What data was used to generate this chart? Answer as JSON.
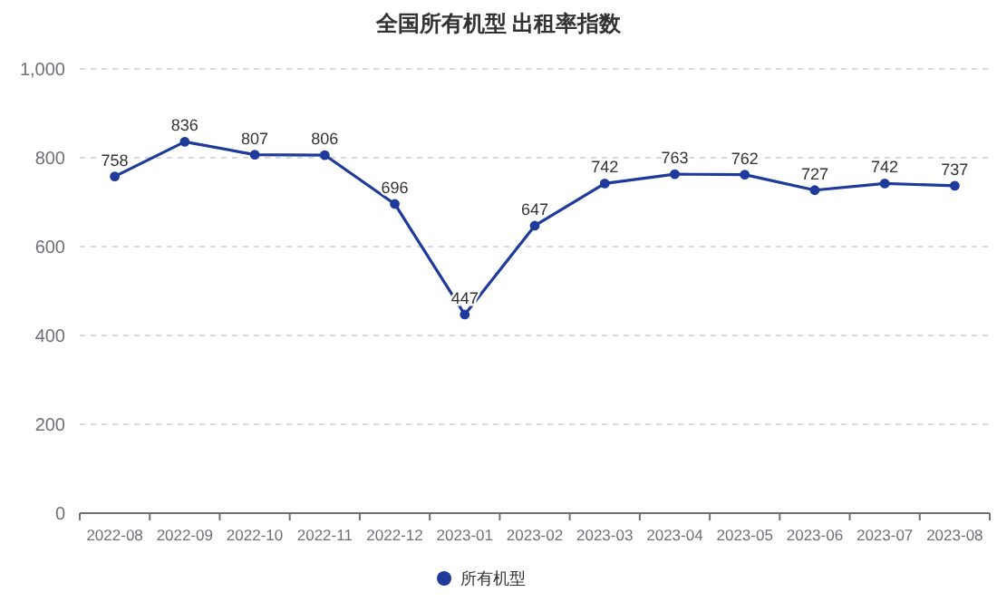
{
  "chart_data": {
    "type": "line",
    "title": "全国所有机型 出租率指数",
    "categories": [
      "2022-08",
      "2022-09",
      "2022-10",
      "2022-11",
      "2022-12",
      "2023-01",
      "2023-02",
      "2023-03",
      "2023-04",
      "2023-05",
      "2023-06",
      "2023-07",
      "2023-08"
    ],
    "series": [
      {
        "name": "所有机型",
        "color": "#1e3a9a",
        "values": [
          758,
          836,
          807,
          806,
          696,
          447,
          647,
          742,
          763,
          762,
          727,
          742,
          737
        ]
      }
    ],
    "ylim": [
      0,
      1000
    ],
    "yticks": [
      0,
      200,
      400,
      600,
      800,
      {
        "value": 1000,
        "label": "1,000"
      }
    ],
    "grid": "y",
    "legend": "bottom",
    "marker": "circle",
    "line_style": "solid",
    "data_labels": true
  }
}
